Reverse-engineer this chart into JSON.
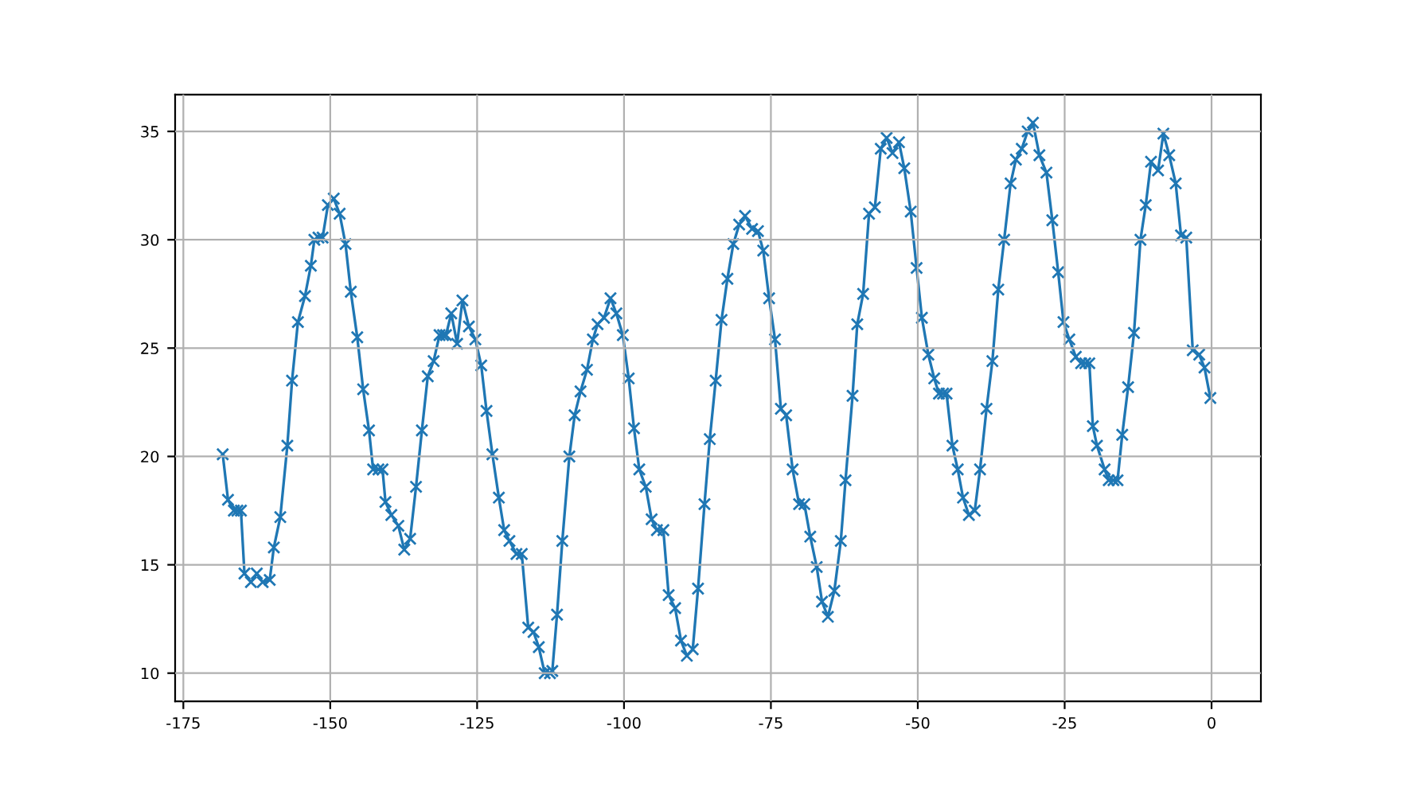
{
  "chart_data": {
    "type": "line",
    "x": [
      -168.3,
      -167.4,
      -166.4,
      -165.8,
      -165.2,
      -164.6,
      -163.5,
      -162.5,
      -161.5,
      -160.3,
      -159.6,
      -158.5,
      -157.3,
      -156.5,
      -155.5,
      -154.3,
      -153.3,
      -152.7,
      -152.0,
      -151.3,
      -150.4,
      -149.4,
      -148.4,
      -147.4,
      -146.5,
      -145.4,
      -144.4,
      -143.4,
      -142.7,
      -141.8,
      -141.1,
      -140.6,
      -139.6,
      -138.4,
      -137.4,
      -136.4,
      -135.4,
      -134.4,
      -133.4,
      -132.4,
      -131.4,
      -130.8,
      -130.3,
      -129.4,
      -128.4,
      -127.5,
      -126.4,
      -125.3,
      -124.3,
      -123.4,
      -122.4,
      -121.3,
      -120.4,
      -119.5,
      -118.3,
      -117.4,
      -116.3,
      -115.4,
      -114.5,
      -113.5,
      -112.6,
      -112.2,
      -111.4,
      -110.5,
      -109.3,
      -108.4,
      -107.4,
      -106.3,
      -105.3,
      -104.5,
      -103.4,
      -102.3,
      -101.3,
      -100.2,
      -99.2,
      -98.3,
      -97.4,
      -96.3,
      -95.3,
      -94.4,
      -93.3,
      -92.4,
      -91.3,
      -90.3,
      -89.3,
      -88.3,
      -87.4,
      -86.3,
      -85.4,
      -84.4,
      -83.4,
      -82.4,
      -81.4,
      -80.4,
      -79.4,
      -78.2,
      -77.2,
      -76.3,
      -75.3,
      -74.3,
      -73.3,
      -72.4,
      -71.3,
      -70.2,
      -69.3,
      -68.3,
      -67.2,
      -66.3,
      -65.3,
      -64.2,
      -63.1,
      -62.3,
      -61.1,
      -60.3,
      -59.3,
      -58.3,
      -57.3,
      -56.3,
      -55.3,
      -54.3,
      -53.2,
      -52.3,
      -51.2,
      -50.2,
      -49.3,
      -48.2,
      -47.2,
      -46.4,
      -45.7,
      -45.1,
      -44.1,
      -43.2,
      -42.3,
      -41.3,
      -40.3,
      -39.4,
      -38.3,
      -37.3,
      -36.3,
      -35.3,
      -34.2,
      -33.3,
      -32.3,
      -31.3,
      -30.4,
      -29.3,
      -28.1,
      -27.1,
      -26.1,
      -25.2,
      -24.2,
      -23.1,
      -22.2,
      -21.5,
      -20.8,
      -20.2,
      -19.5,
      -18.2,
      -17.5,
      -16.7,
      -16.0,
      -15.2,
      -14.2,
      -13.2,
      -12.1,
      -11.2,
      -10.3,
      -9.1,
      -8.2,
      -7.2,
      -6.1,
      -5.2,
      -4.3,
      -3.2,
      -2.1,
      -1.2,
      -0.2
    ],
    "series": [
      {
        "color": "#1f77b4",
        "values": [
          20.1,
          18.0,
          17.5,
          17.5,
          17.5,
          14.6,
          14.2,
          14.6,
          14.2,
          14.3,
          15.8,
          17.2,
          20.5,
          23.5,
          26.2,
          27.4,
          28.8,
          30.0,
          30.1,
          30.1,
          31.6,
          31.9,
          31.2,
          29.8,
          27.6,
          25.5,
          23.1,
          21.2,
          19.4,
          19.4,
          19.4,
          17.9,
          17.3,
          16.8,
          15.7,
          16.2,
          18.6,
          21.2,
          23.7,
          24.4,
          25.6,
          25.6,
          25.6,
          26.6,
          25.2,
          27.2,
          26.0,
          25.4,
          24.2,
          22.1,
          20.1,
          18.1,
          16.6,
          16.1,
          15.5,
          15.5,
          12.1,
          11.9,
          11.2,
          10.0,
          10.0,
          10.1,
          12.7,
          16.1,
          20.0,
          21.9,
          23.0,
          24.0,
          25.4,
          26.1,
          26.4,
          27.3,
          26.6,
          25.6,
          23.6,
          21.3,
          19.4,
          18.6,
          17.1,
          16.6,
          16.6,
          13.6,
          13.0,
          11.5,
          10.8,
          11.1,
          13.9,
          17.8,
          20.8,
          23.5,
          26.3,
          28.2,
          29.8,
          30.7,
          31.1,
          30.5,
          30.4,
          29.5,
          27.3,
          25.4,
          22.2,
          21.9,
          19.4,
          17.8,
          17.8,
          16.3,
          14.9,
          13.3,
          12.6,
          13.8,
          16.1,
          18.9,
          22.8,
          26.1,
          27.5,
          31.2,
          31.5,
          34.2,
          34.7,
          34.0,
          34.5,
          33.3,
          31.3,
          28.7,
          26.4,
          24.7,
          23.6,
          22.9,
          22.9,
          22.9,
          20.5,
          19.4,
          18.1,
          17.3,
          17.5,
          19.4,
          22.2,
          24.4,
          27.7,
          30.0,
          32.6,
          33.7,
          34.2,
          35.0,
          35.4,
          33.9,
          33.1,
          30.9,
          28.5,
          26.2,
          25.4,
          24.6,
          24.3,
          24.3,
          24.3,
          21.4,
          20.5,
          19.4,
          18.9,
          18.9,
          18.9,
          21.0,
          23.2,
          25.7,
          30.0,
          31.6,
          33.6,
          33.2,
          34.9,
          33.9,
          32.6,
          30.2,
          30.1,
          24.9,
          24.7,
          24.1,
          22.7
        ]
      }
    ],
    "xlim": [
      -176.4,
      8.4
    ],
    "ylim": [
      8.7,
      36.7
    ],
    "xticks": [
      -175,
      -150,
      -125,
      -100,
      -75,
      -50,
      -25,
      0
    ],
    "yticks": [
      10,
      15,
      20,
      25,
      30,
      35
    ],
    "grid": true,
    "marker": "cross",
    "line_style": "solid"
  }
}
